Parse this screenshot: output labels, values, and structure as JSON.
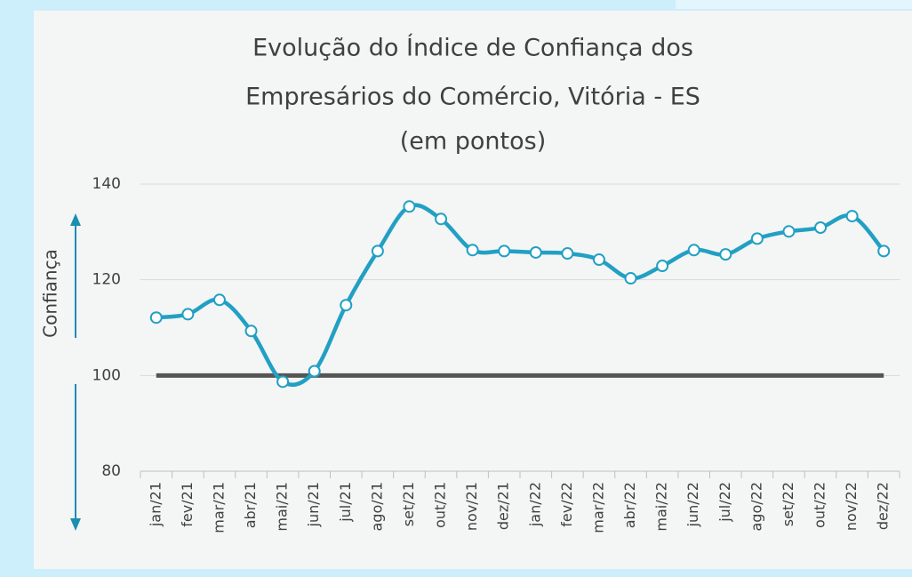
{
  "chart_data": {
    "type": "line",
    "title": [
      "Evolução do Índice de Confiança dos",
      "Empresários do Comércio, Vitória - ES",
      "(em pontos)"
    ],
    "y_label": "Confiança",
    "categories": [
      "jan/21",
      "fev/21",
      "mar/21",
      "abr/21",
      "mai/21",
      "jun/21",
      "jul/21",
      "ago/21",
      "set/21",
      "out/21",
      "nov/21",
      "dez/21",
      "jan/22",
      "fev/22",
      "mar/22",
      "abr/22",
      "mai/22",
      "jun/22",
      "jul/22",
      "ago/22",
      "set/22",
      "out/22",
      "nov/22",
      "dez/22"
    ],
    "series": [
      {
        "name": "Confiança",
        "color": "#22a0c4",
        "values": [
          112.1,
          112.8,
          115.8,
          109.3,
          98.7,
          100.9,
          114.7,
          126.0,
          135.3,
          132.7,
          126.2,
          126.0,
          125.7,
          125.5,
          124.2,
          120.3,
          122.9,
          126.2,
          125.3,
          128.6,
          130.1,
          130.9,
          133.3,
          126.0
        ]
      }
    ],
    "reference_line": {
      "value": 100,
      "color": "#555555"
    },
    "ylim": [
      80,
      140
    ],
    "yticks": [
      80,
      100,
      120,
      140
    ],
    "grid": true
  }
}
